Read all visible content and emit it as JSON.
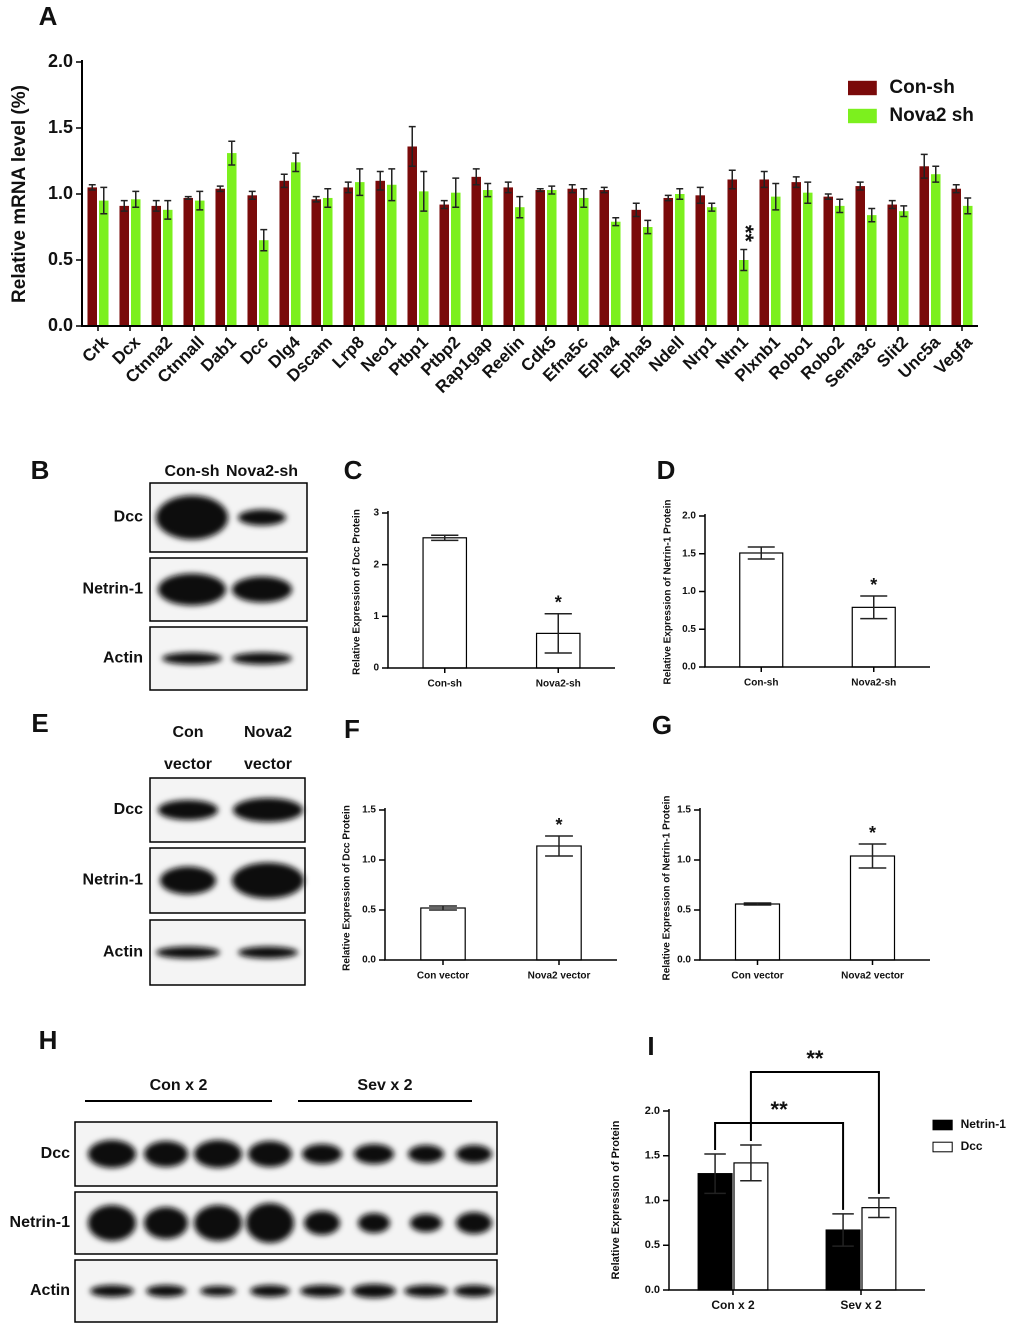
{
  "chart_data": [
    {
      "type": "bar",
      "panel": "A",
      "ylabel": "Relative mRNA level (%)",
      "categories": [
        "Crk",
        "Dcx",
        "Ctnna2",
        "Ctnnall",
        "Dab1",
        "Dcc",
        "Dlg4",
        "Dscam",
        "Lrp8",
        "Neo1",
        "Ptbp1",
        "Ptbp2",
        "Rap1gap",
        "Reelin",
        "Cdk5",
        "Efna5c",
        "Epha4",
        "Epha5",
        "Ndell",
        "Nrp1",
        "Ntn1",
        "Plxnb1",
        "Robo1",
        "Robo2",
        "Sema3c",
        "Slit2",
        "Unc5a",
        "Vegfa"
      ],
      "series": [
        {
          "name": "Con-sh",
          "color": "#7a0a0a",
          "values": [
            1.05,
            0.91,
            0.91,
            0.97,
            1.04,
            0.99,
            1.1,
            0.96,
            1.05,
            1.1,
            1.36,
            0.92,
            1.13,
            1.05,
            1.03,
            1.04,
            1.03,
            0.88,
            0.97,
            0.99,
            1.11,
            1.11,
            1.09,
            0.98,
            1.06,
            0.92,
            1.21,
            1.04
          ],
          "errors": [
            0.02,
            0.04,
            0.04,
            0.01,
            0.02,
            0.03,
            0.05,
            0.02,
            0.04,
            0.07,
            0.15,
            0.03,
            0.06,
            0.04,
            0.01,
            0.03,
            0.02,
            0.05,
            0.02,
            0.06,
            0.07,
            0.06,
            0.04,
            0.02,
            0.03,
            0.03,
            0.09,
            0.03
          ]
        },
        {
          "name": "Nova2 sh",
          "color": "#7cf01e",
          "values": [
            0.95,
            0.96,
            0.88,
            0.95,
            1.31,
            0.65,
            1.24,
            0.97,
            1.09,
            1.07,
            1.02,
            1.01,
            1.03,
            0.9,
            1.03,
            0.97,
            0.79,
            0.75,
            1.0,
            0.9,
            0.5,
            0.98,
            1.01,
            0.91,
            0.84,
            0.87,
            1.15,
            0.91
          ],
          "errors": [
            0.1,
            0.06,
            0.07,
            0.07,
            0.09,
            0.08,
            0.07,
            0.07,
            0.1,
            0.12,
            0.15,
            0.11,
            0.05,
            0.08,
            0.03,
            0.07,
            0.03,
            0.05,
            0.04,
            0.03,
            0.08,
            0.1,
            0.08,
            0.05,
            0.05,
            0.04,
            0.06,
            0.06
          ],
          "significance": [
            null,
            null,
            null,
            null,
            null,
            null,
            null,
            null,
            null,
            null,
            null,
            null,
            null,
            null,
            null,
            null,
            null,
            null,
            null,
            null,
            "**",
            null,
            null,
            null,
            null,
            null,
            null,
            null
          ]
        }
      ],
      "ylim": [
        0,
        2
      ],
      "yticks": [
        {
          "value": 0,
          "label": "0.0"
        },
        0.5,
        {
          "value": 1,
          "label": "1.0"
        },
        1.5,
        {
          "value": 2,
          "label": "2.0"
        }
      ]
    },
    {
      "type": "bar",
      "panel": "C",
      "ylabel": "Relative Expression of Dcc Protein",
      "categories": [
        "Con-sh",
        "Nova2-sh"
      ],
      "series": [
        {
          "color": "#ffffff",
          "edgecolor": "#000000",
          "values": [
            2.52,
            0.67
          ],
          "errors": [
            0.05,
            0.38
          ],
          "significance": [
            null,
            "*"
          ]
        }
      ],
      "ylim": [
        0,
        3
      ],
      "yticks": [
        0,
        1,
        2,
        3
      ]
    },
    {
      "type": "bar",
      "panel": "D",
      "ylabel": "Relative Expression of Netrin-1 Protein",
      "categories": [
        "Con-sh",
        "Nova2-sh"
      ],
      "series": [
        {
          "color": "#ffffff",
          "edgecolor": "#000000",
          "values": [
            1.51,
            0.79
          ],
          "errors": [
            0.08,
            0.15
          ],
          "significance": [
            null,
            "*"
          ]
        }
      ],
      "ylim": [
        0,
        2
      ],
      "yticks": [
        {
          "value": 0,
          "label": "0.0"
        },
        0.5,
        {
          "value": 1,
          "label": "1.0"
        },
        1.5,
        {
          "value": 2,
          "label": "2.0"
        }
      ]
    },
    {
      "type": "bar",
      "panel": "F",
      "ylabel": "Relative Expression of Dcc Protein",
      "categories": [
        "Con vector",
        "Nova2 vector"
      ],
      "series": [
        {
          "color": "#ffffff",
          "edgecolor": "#000000",
          "values": [
            0.52,
            1.14
          ],
          "errors": [
            0.02,
            0.1
          ],
          "significance": [
            null,
            "*"
          ]
        }
      ],
      "ylim": [
        0,
        1.5
      ],
      "yticks": [
        {
          "value": 0,
          "label": "0.0"
        },
        0.5,
        {
          "value": 1,
          "label": "1.0"
        },
        1.5
      ]
    },
    {
      "type": "bar",
      "panel": "G",
      "ylabel": "Relative Expression of Netrin-1 Protein",
      "categories": [
        "Con vector",
        "Nova2 vector"
      ],
      "series": [
        {
          "color": "#ffffff",
          "edgecolor": "#000000",
          "values": [
            0.56,
            1.04
          ],
          "errors": [
            0.01,
            0.12
          ],
          "significance": [
            null,
            "*"
          ]
        }
      ],
      "ylim": [
        0,
        1.5
      ],
      "yticks": [
        {
          "value": 0,
          "label": "0.0"
        },
        0.5,
        {
          "value": 1,
          "label": "1.0"
        },
        1.5
      ]
    },
    {
      "type": "bar",
      "panel": "I",
      "ylabel": "Relative Expression of Protein",
      "categories": [
        "Con x 2",
        "Sev x 2"
      ],
      "series": [
        {
          "name": "Netrin-1",
          "color": "#000000",
          "edgecolor": "#000000",
          "values": [
            1.3,
            0.67
          ],
          "errors": [
            0.22,
            0.18
          ],
          "comparison": "**"
        },
        {
          "name": "Dcc",
          "color": "#ffffff",
          "edgecolor": "#000000",
          "values": [
            1.42,
            0.92
          ],
          "errors": [
            0.2,
            0.11
          ],
          "comparison": "**"
        }
      ],
      "ylim": [
        0,
        2
      ],
      "yticks": [
        {
          "value": 0,
          "label": "0.0"
        },
        0.5,
        {
          "value": 1,
          "label": "1.0"
        },
        1.5,
        {
          "value": 2,
          "label": "2.0"
        }
      ]
    }
  ],
  "blots": [
    {
      "panel": "B",
      "columns": [
        [
          "Con-sh"
        ],
        [
          "Nova2-sh"
        ]
      ],
      "rows": [
        "Dcc",
        "Netrin-1",
        "Actin"
      ]
    },
    {
      "panel": "E",
      "columns": [
        [
          "Con",
          "vector"
        ],
        [
          "Nova2",
          "vector"
        ]
      ],
      "rows": [
        "Dcc",
        "Netrin-1",
        "Actin"
      ]
    },
    {
      "panel": "H",
      "groups": [
        "Con x 2",
        "Sev x 2"
      ],
      "rows": [
        "Dcc",
        "Netrin-1",
        "Actin"
      ]
    }
  ]
}
